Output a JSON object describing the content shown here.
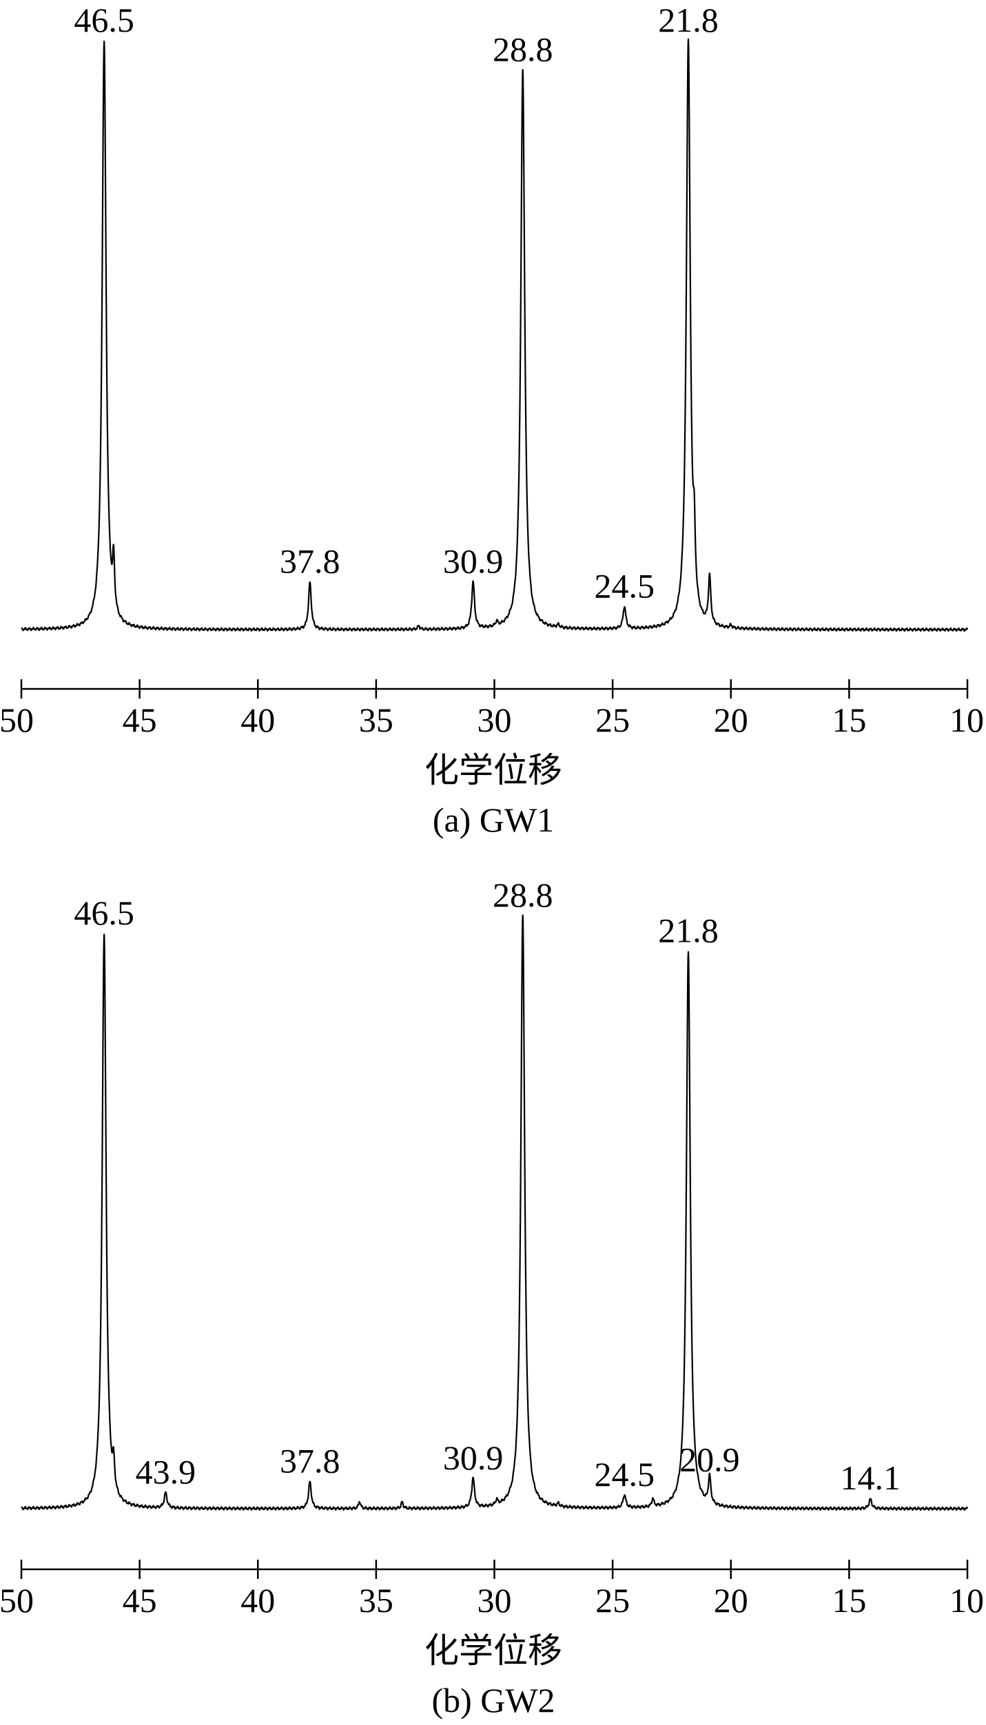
{
  "chart_data": [
    {
      "type": "line",
      "caption": "(a) GW1",
      "xlabel": "化学位移",
      "ylabel": "",
      "xlim": [
        50,
        10
      ],
      "x_reversed": true,
      "x_ticks": [
        "50",
        "45",
        "40",
        "35",
        "30",
        "25",
        "20",
        "15",
        "10"
      ],
      "baseline": 0,
      "series": [
        {
          "peaks": [
            {
              "x": 46.5,
              "h": 100,
              "w": 0.1,
              "label": "46.5"
            },
            {
              "x": 46.1,
              "h": 8.5,
              "w": 0.05
            },
            {
              "x": 37.8,
              "h": 8.0,
              "w": 0.07,
              "label": "37.8"
            },
            {
              "x": 33.2,
              "h": 0.6,
              "w": 0.05
            },
            {
              "x": 30.9,
              "h": 8.0,
              "w": 0.07,
              "label": "30.9"
            },
            {
              "x": 29.9,
              "h": 0.8,
              "w": 0.05
            },
            {
              "x": 28.8,
              "h": 95,
              "w": 0.1,
              "label": "28.8"
            },
            {
              "x": 27.3,
              "h": 0.5,
              "w": 0.06
            },
            {
              "x": 24.5,
              "h": 3.8,
              "w": 0.07,
              "label": "24.5"
            },
            {
              "x": 21.8,
              "h": 100,
              "w": 0.1,
              "label": "21.8"
            },
            {
              "x": 21.55,
              "h": 9.5,
              "w": 0.05
            },
            {
              "x": 20.9,
              "h": 8.2,
              "w": 0.06
            },
            {
              "x": 20.0,
              "h": 0.5,
              "w": 0.05
            }
          ]
        }
      ]
    },
    {
      "type": "line",
      "caption": "(b) GW2",
      "xlabel": "化学位移",
      "ylabel": "",
      "xlim": [
        50,
        10
      ],
      "x_reversed": true,
      "x_ticks": [
        "50",
        "45",
        "40",
        "35",
        "30",
        "25",
        "20",
        "15",
        "10"
      ],
      "baseline": 0,
      "series": [
        {
          "peaks": [
            {
              "x": 46.5,
              "h": 97,
              "w": 0.1,
              "label": "46.5"
            },
            {
              "x": 46.1,
              "h": 4.5,
              "w": 0.05
            },
            {
              "x": 43.9,
              "h": 2.6,
              "w": 0.07,
              "label": "43.9"
            },
            {
              "x": 37.8,
              "h": 4.5,
              "w": 0.07,
              "label": "37.8"
            },
            {
              "x": 35.7,
              "h": 1.2,
              "w": 0.05
            },
            {
              "x": 33.9,
              "h": 1.1,
              "w": 0.05
            },
            {
              "x": 30.9,
              "h": 5.0,
              "w": 0.07,
              "label": "30.9"
            },
            {
              "x": 29.9,
              "h": 0.9,
              "w": 0.05
            },
            {
              "x": 28.8,
              "h": 100,
              "w": 0.1,
              "label": "28.8"
            },
            {
              "x": 27.3,
              "h": 0.5,
              "w": 0.06
            },
            {
              "x": 24.5,
              "h": 2.2,
              "w": 0.07,
              "label": "24.5"
            },
            {
              "x": 23.3,
              "h": 1.4,
              "w": 0.05
            },
            {
              "x": 21.8,
              "h": 94,
              "w": 0.1,
              "label": "21.8"
            },
            {
              "x": 20.9,
              "h": 4.7,
              "w": 0.06,
              "label": "20.9"
            },
            {
              "x": 14.1,
              "h": 1.6,
              "w": 0.07,
              "label": "14.1"
            }
          ]
        }
      ]
    }
  ]
}
